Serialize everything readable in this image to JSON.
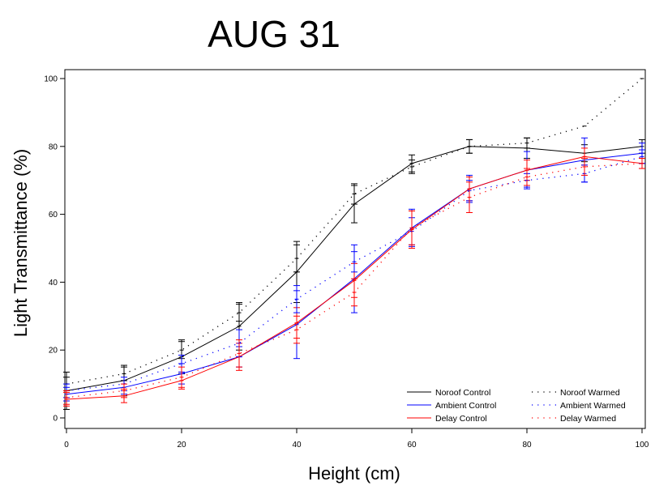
{
  "chart_data": {
    "type": "line",
    "title": "AUG 31",
    "xlabel": "Height (cm)",
    "ylabel": "Light Transmittance (%)",
    "xlim": [
      0,
      100
    ],
    "ylim": [
      0,
      100
    ],
    "xticks": [
      "0",
      "20",
      "40",
      "60",
      "80",
      "100"
    ],
    "yticks": [
      "0",
      "20",
      "40",
      "60",
      "80",
      "100"
    ],
    "grid": false,
    "legend_position": "bottom-right",
    "x": [
      0,
      10,
      20,
      30,
      40,
      50,
      60,
      70,
      80,
      90,
      100
    ],
    "series": [
      {
        "name": "Noroof Control",
        "color": "#000000",
        "style": "solid",
        "values": [
          8,
          11,
          18,
          27,
          43,
          63,
          75,
          80,
          79.5,
          78,
          80
        ],
        "error": [
          5.5,
          4.5,
          5,
          7,
          9,
          5.5,
          2.5,
          2,
          3,
          2.5,
          2
        ]
      },
      {
        "name": "Ambient Control",
        "color": "#0000ff",
        "style": "solid",
        "values": [
          7,
          9,
          13,
          18,
          27.5,
          41,
          56,
          67.5,
          73,
          76,
          78
        ],
        "error": [
          2,
          2,
          3,
          3,
          10,
          10,
          5.5,
          4,
          5.5,
          6.5,
          3
        ]
      },
      {
        "name": "Delay Control",
        "color": "#ff0000",
        "style": "solid",
        "values": [
          5.5,
          6.5,
          11,
          18,
          28,
          40.5,
          55.5,
          67.5,
          73,
          77,
          75
        ],
        "error": [
          2,
          2,
          2.5,
          4,
          4.5,
          5,
          5.5,
          3.5,
          3,
          2.5,
          1.5
        ]
      },
      {
        "name": "Noroof Warmed",
        "color": "#000000",
        "style": "dotted",
        "values": [
          10,
          13,
          20,
          31,
          47,
          66,
          74,
          80,
          81,
          86,
          100
        ],
        "error": [
          2,
          2,
          2.5,
          2.5,
          4,
          3,
          2,
          2,
          1.5,
          0,
          0
        ]
      },
      {
        "name": "Ambient Warmed",
        "color": "#0000ff",
        "style": "dotted",
        "values": [
          8,
          10,
          16,
          22,
          35,
          46,
          55,
          67,
          70,
          72,
          77
        ],
        "error": [
          2,
          2,
          2.5,
          4,
          4,
          3,
          4,
          3,
          2,
          2.5,
          2
        ]
      },
      {
        "name": "Delay Warmed",
        "color": "#ff0000",
        "style": "dotted",
        "values": [
          6,
          8,
          12,
          19,
          26,
          37,
          56,
          65,
          71,
          74,
          75
        ],
        "error": [
          2,
          2,
          3,
          4,
          4,
          4,
          5,
          4.5,
          2.5,
          2.5,
          1.5
        ]
      }
    ]
  }
}
